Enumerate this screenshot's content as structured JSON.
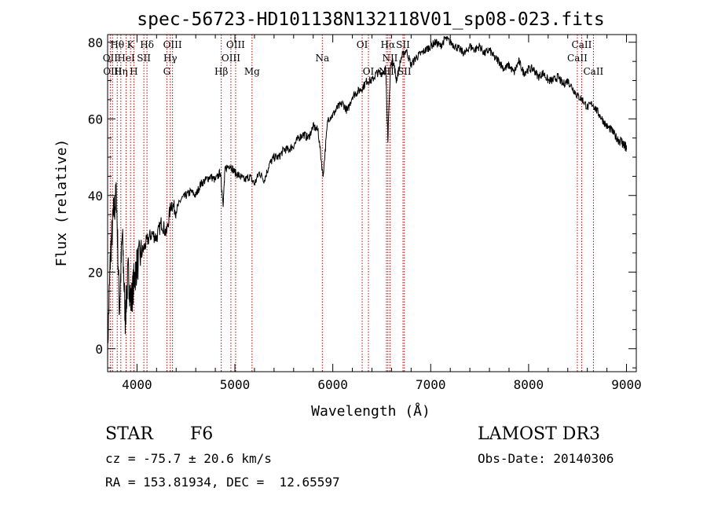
{
  "chart_data": {
    "type": "line",
    "title": "spec-56723-HD101138N132118V01_sp08-023.fits",
    "xlabel": "Wavelength (Å)",
    "ylabel": "Flux (relative)",
    "xlim": [
      3700,
      9100
    ],
    "ylim": [
      -6,
      82
    ],
    "xticks": [
      4000,
      5000,
      6000,
      7000,
      8000,
      9000
    ],
    "xtick_labels": [
      "4000",
      "5000",
      "6000",
      "7000",
      "8000",
      "9000"
    ],
    "yticks": [
      0,
      20,
      40,
      60,
      80
    ],
    "ytick_labels": [
      "0",
      "20",
      "40",
      "60",
      "80"
    ],
    "grid": false,
    "series": [
      {
        "name": "flux",
        "x": [
          3700,
          3730,
          3760,
          3790,
          3820,
          3850,
          3880,
          3910,
          3940,
          3970,
          4000,
          4050,
          4100,
          4150,
          4200,
          4250,
          4300,
          4350,
          4400,
          4450,
          4500,
          4550,
          4600,
          4650,
          4700,
          4750,
          4800,
          4850,
          4880,
          4900,
          4950,
          5000,
          5050,
          5100,
          5150,
          5200,
          5250,
          5300,
          5350,
          5400,
          5450,
          5500,
          5550,
          5600,
          5650,
          5700,
          5750,
          5800,
          5850,
          5900,
          5950,
          6000,
          6050,
          6100,
          6150,
          6200,
          6250,
          6300,
          6350,
          6400,
          6450,
          6500,
          6540,
          6563,
          6590,
          6620,
          6650,
          6700,
          6750,
          6800,
          6850,
          6900,
          6950,
          7000,
          7050,
          7100,
          7150,
          7200,
          7250,
          7300,
          7350,
          7400,
          7450,
          7500,
          7550,
          7600,
          7650,
          7700,
          7750,
          7800,
          7850,
          7900,
          7950,
          8000,
          8050,
          8100,
          8150,
          8200,
          8250,
          8300,
          8350,
          8400,
          8450,
          8500,
          8550,
          8600,
          8650,
          8700,
          8750,
          8800,
          8850,
          8900,
          8950,
          8980,
          9000
        ],
        "y": [
          0,
          25,
          35,
          40,
          10,
          30,
          8,
          20,
          12,
          18,
          22,
          25,
          28,
          30,
          29,
          33,
          30,
          38,
          36,
          39,
          40,
          41,
          40,
          43,
          44,
          45,
          44,
          46,
          38,
          47,
          48,
          46,
          45,
          44,
          45,
          43,
          46,
          44,
          48,
          50,
          50,
          52,
          52,
          53,
          55,
          56,
          55,
          58,
          57,
          45,
          60,
          61,
          63,
          64,
          62,
          66,
          67,
          68,
          70,
          70,
          72,
          72,
          73,
          55,
          74,
          75,
          70,
          76,
          78,
          74,
          76,
          77,
          78,
          79,
          80,
          79,
          81,
          80,
          79,
          78,
          77,
          79,
          78,
          79,
          77,
          78,
          76,
          75,
          73,
          74,
          72,
          75,
          72,
          73,
          73,
          71,
          72,
          70,
          70,
          71,
          69,
          70,
          68,
          66,
          65,
          63,
          64,
          62,
          60,
          58,
          57,
          55,
          54,
          53,
          52
        ]
      }
    ],
    "line_labels": [
      {
        "text": "Hθ",
        "wl": 3798,
        "row": 0
      },
      {
        "text": "K",
        "wl": 3934,
        "row": 0
      },
      {
        "text": "Hδ",
        "wl": 4102,
        "row": 0
      },
      {
        "text": "OIII",
        "wl": 4363,
        "row": 0
      },
      {
        "text": "OIII",
        "wl": 5007,
        "row": 0
      },
      {
        "text": "OI",
        "wl": 6300,
        "row": 0
      },
      {
        "text": "Hα",
        "wl": 6563,
        "row": 0
      },
      {
        "text": "SII",
        "wl": 6717,
        "row": 0
      },
      {
        "text": "CaII",
        "wl": 8542,
        "row": 0
      },
      {
        "text": "OII",
        "wl": 3727,
        "row": 1
      },
      {
        "text": "HeI",
        "wl": 3889,
        "row": 1
      },
      {
        "text": "SII",
        "wl": 4070,
        "row": 1
      },
      {
        "text": "Hγ",
        "wl": 4340,
        "row": 1
      },
      {
        "text": "OIII",
        "wl": 4959,
        "row": 1
      },
      {
        "text": "Na",
        "wl": 5893,
        "row": 1
      },
      {
        "text": "NII",
        "wl": 6584,
        "row": 1
      },
      {
        "text": "CaII",
        "wl": 8498,
        "row": 1
      },
      {
        "text": "OIII",
        "wl": 3750,
        "row": 2
      },
      {
        "text": "Hη",
        "wl": 3835,
        "row": 2
      },
      {
        "text": "H",
        "wl": 3968,
        "row": 2
      },
      {
        "text": "G",
        "wl": 4305,
        "row": 2
      },
      {
        "text": "Hβ",
        "wl": 4861,
        "row": 2
      },
      {
        "text": "Mg",
        "wl": 5175,
        "row": 2
      },
      {
        "text": "OI",
        "wl": 6364,
        "row": 2
      },
      {
        "text": "NII",
        "wl": 6548,
        "row": 2
      },
      {
        "text": "SII",
        "wl": 6731,
        "row": 2
      },
      {
        "text": "CaII",
        "wl": 8662,
        "row": 2
      }
    ],
    "line_markers": [
      3727,
      3750,
      3798,
      3835,
      3889,
      3934,
      3968,
      4070,
      4102,
      4305,
      4340,
      4363,
      4861,
      4959,
      5007,
      5175,
      5893,
      6300,
      6364,
      6548,
      6563,
      6584,
      6717,
      6731,
      8498,
      8542,
      8662
    ]
  },
  "info": {
    "object_class": "STAR",
    "subclass": "F6",
    "survey": "LAMOST DR3",
    "cz": "cz = -75.7 ± 20.6 km/s",
    "obs_date": "Obs-Date: 20140306",
    "coords": "RA = 153.81934, DEC =  12.65597"
  },
  "colors": {
    "axis": "#000000",
    "spectrum": "#000000",
    "marker": "#c00000",
    "background": "#ffffff"
  }
}
